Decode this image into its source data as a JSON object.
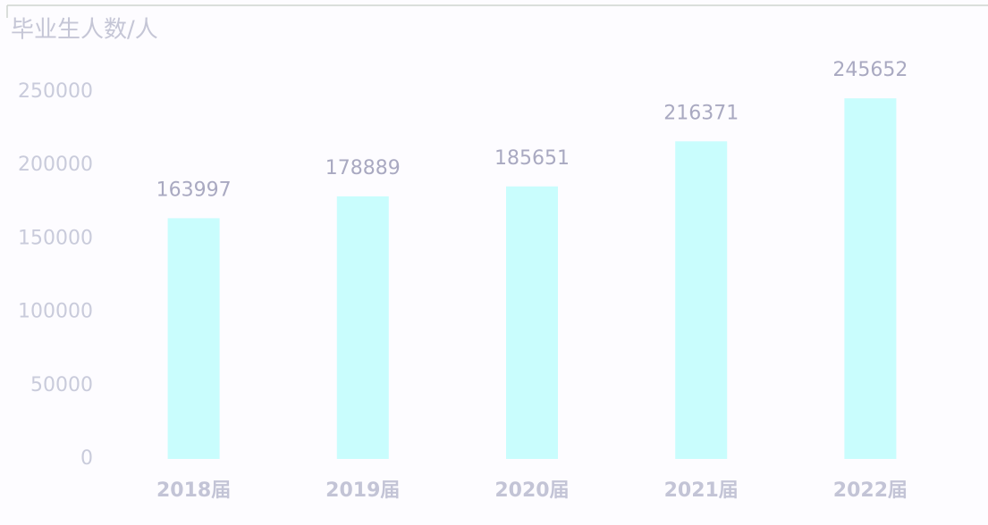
{
  "chart_data": {
    "type": "bar",
    "title": "毕业生人数/人",
    "categories": [
      "2018届",
      "2019届",
      "2020届",
      "2021届",
      "2022届"
    ],
    "values": [
      163997,
      178889,
      185651,
      216371,
      245652
    ],
    "color": "#c9fdfd",
    "ylim": [
      0,
      250000
    ],
    "yticks": [
      0,
      50000,
      100000,
      150000,
      200000,
      250000
    ],
    "grid": false
  }
}
